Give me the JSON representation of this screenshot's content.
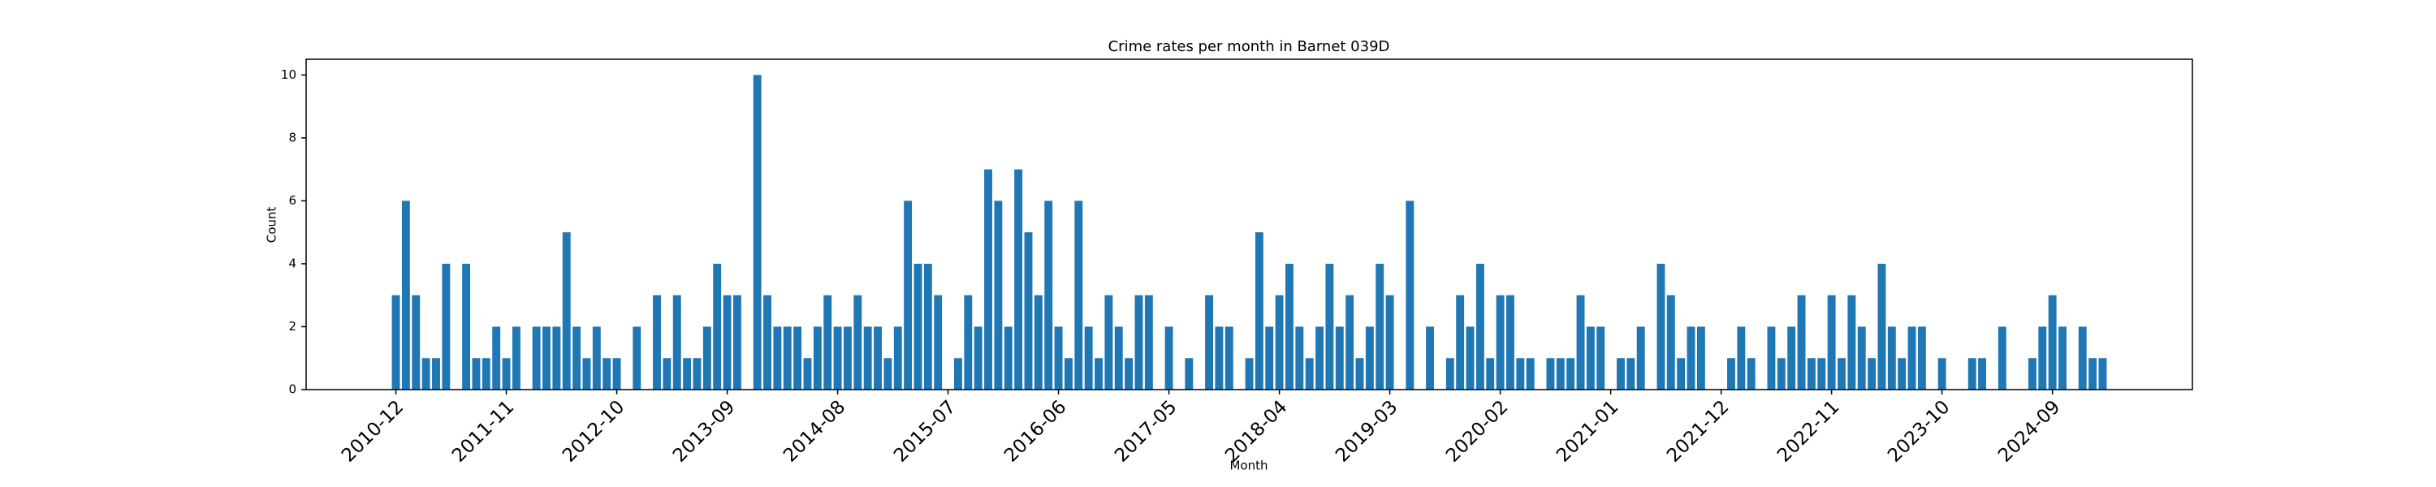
{
  "chart_data": {
    "type": "bar",
    "title": "Crime rates per month in Barnet 039D",
    "xlabel": "Month",
    "ylabel": "Count",
    "color": "#1f77b4",
    "categories": [
      "2010-12",
      null,
      null,
      null,
      null,
      null,
      null,
      null,
      null,
      null,
      null,
      "2011-11",
      null,
      null,
      null,
      null,
      null,
      null,
      null,
      null,
      null,
      null,
      "2012-10",
      null,
      null,
      null,
      null,
      null,
      null,
      null,
      null,
      null,
      null,
      "2013-09",
      null,
      null,
      null,
      null,
      null,
      null,
      null,
      null,
      null,
      null,
      "2014-08",
      null,
      null,
      null,
      null,
      null,
      null,
      null,
      null,
      null,
      null,
      "2015-07",
      null,
      null,
      null,
      null,
      null,
      null,
      null,
      null,
      null,
      null,
      "2016-06",
      null,
      null,
      null,
      null,
      null,
      null,
      null,
      null,
      null,
      null,
      "2017-05",
      null,
      null,
      null,
      null,
      null,
      null,
      null,
      null,
      null,
      null,
      "2018-04",
      null,
      null,
      null,
      null,
      null,
      null,
      null,
      null,
      null,
      null,
      "2019-03",
      null,
      null,
      null,
      null,
      null,
      null,
      null,
      null,
      null,
      null,
      "2020-02",
      null,
      null,
      null,
      null,
      null,
      null,
      null,
      null,
      null,
      null,
      "2021-01",
      null,
      null,
      null,
      null,
      null,
      null,
      null,
      null,
      null,
      null,
      "2021-12",
      null,
      null,
      null,
      null,
      null,
      null,
      null,
      null,
      null,
      null,
      "2022-11",
      null,
      null,
      null,
      null,
      null,
      null,
      null,
      null,
      null,
      null,
      "2023-10",
      null,
      null,
      null,
      null,
      null,
      null,
      null,
      null,
      null,
      null,
      "2024-09",
      null,
      null,
      null,
      null,
      null
    ],
    "values": [
      3,
      6,
      3,
      1,
      1,
      4,
      0,
      4,
      1,
      1,
      2,
      1,
      2,
      0,
      2,
      2,
      2,
      5,
      2,
      1,
      2,
      1,
      1,
      0,
      2,
      0,
      3,
      1,
      3,
      1,
      1,
      2,
      4,
      3,
      3,
      0,
      10,
      3,
      2,
      2,
      2,
      1,
      2,
      3,
      2,
      2,
      3,
      2,
      2,
      1,
      2,
      6,
      4,
      4,
      3,
      0,
      1,
      3,
      2,
      7,
      6,
      2,
      7,
      5,
      3,
      6,
      2,
      1,
      6,
      2,
      1,
      3,
      2,
      1,
      3,
      3,
      0,
      2,
      0,
      1,
      0,
      3,
      2,
      2,
      0,
      1,
      5,
      2,
      3,
      4,
      2,
      1,
      2,
      4,
      2,
      3,
      1,
      2,
      4,
      3,
      0,
      6,
      0,
      2,
      0,
      1,
      3,
      2,
      4,
      1,
      3,
      3,
      1,
      1,
      0,
      1,
      1,
      1,
      3,
      2,
      2,
      0,
      1,
      1,
      2,
      0,
      4,
      3,
      1,
      2,
      2,
      0,
      0,
      1,
      2,
      1,
      0,
      2,
      1,
      2,
      3,
      1,
      1,
      3,
      1,
      3,
      2,
      1,
      4,
      2,
      1,
      2,
      2,
      0,
      1,
      0,
      0,
      1,
      1,
      0,
      2,
      0,
      0,
      1,
      2,
      3,
      2,
      0,
      2,
      1,
      1
    ],
    "ylim": [
      0,
      10.5
    ],
    "yticks": [
      0,
      2,
      4,
      6,
      8,
      10
    ]
  }
}
